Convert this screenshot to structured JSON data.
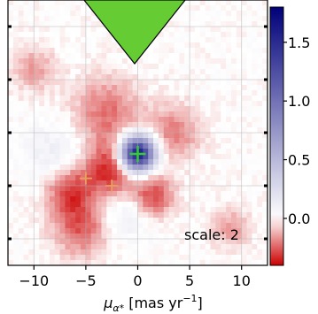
{
  "chart_data": {
    "type": "heatmap",
    "title": "",
    "xlabel_main": "μ",
    "xlabel_sub": "α*",
    "xlabel_units": " [mas yr",
    "xlabel_exp": "−1",
    "xlabel_close": "]",
    "xlim": [
      -12.5,
      12.5
    ],
    "ylim": [
      -12.5,
      12.5
    ],
    "x_ticks": [
      -10,
      -5,
      0,
      5,
      10
    ],
    "x_tick_labels": [
      "−10",
      "−5",
      "0",
      "5",
      "10"
    ],
    "y_ticks": [
      -10,
      -5,
      0,
      5,
      10
    ],
    "colorbar": {
      "vmin": -0.4,
      "vmax": 1.8,
      "ticks": [
        0.0,
        0.5,
        1.0,
        1.5
      ],
      "tick_labels": [
        "0.0",
        "0.5",
        "1.0",
        "1.5"
      ],
      "colormap": "seismic-reversed",
      "color_low": "#cc0000",
      "color_mid": "#ffffff",
      "color_high": "#00007a"
    },
    "features": [
      {
        "kind": "blob",
        "x": 0.0,
        "y": -2.0,
        "amplitude": 1.7,
        "sigma": 1.1
      },
      {
        "kind": "blob",
        "x": -2.5,
        "y": -3.5,
        "amplitude": -0.35,
        "sigma": 1.8
      },
      {
        "kind": "blob",
        "x": -6.5,
        "y": -5.5,
        "amplitude": -0.3,
        "sigma": 1.6
      },
      {
        "kind": "blob",
        "x": 1.5,
        "y": -6.0,
        "amplitude": -0.3,
        "sigma": 1.4
      },
      {
        "kind": "blob",
        "x": -5.5,
        "y": -9.0,
        "amplitude": -0.25,
        "sigma": 1.8
      },
      {
        "kind": "blob",
        "x": -3.0,
        "y": 2.0,
        "amplitude": -0.22,
        "sigma": 2.2
      },
      {
        "kind": "blob",
        "x": 3.5,
        "y": 0.0,
        "amplitude": -0.2,
        "sigma": 1.8
      },
      {
        "kind": "blob",
        "x": -8.0,
        "y": -2.0,
        "amplitude": 0.12,
        "sigma": 2.0
      },
      {
        "kind": "blob",
        "x": -1.0,
        "y": -7.5,
        "amplitude": 0.12,
        "sigma": 1.8
      },
      {
        "kind": "blob",
        "x": -10.0,
        "y": 6.0,
        "amplitude": -0.15,
        "sigma": 1.5
      },
      {
        "kind": "blob",
        "x": 9.0,
        "y": -9.0,
        "amplitude": -0.15,
        "sigma": 1.3
      }
    ],
    "markers": [
      {
        "x": 0.0,
        "y": -2.0,
        "color": "#33cc33",
        "style": "plus"
      },
      {
        "x": -5.0,
        "y": -4.3,
        "color": "#e8a060",
        "style": "plus"
      },
      {
        "x": -2.5,
        "y": -5.0,
        "color": "#e8a060",
        "style": "plus"
      }
    ],
    "arrow": {
      "tip_x": -0.3,
      "tip_y": 6.5,
      "direction": "down",
      "color": "#66cc33"
    },
    "annotation": "scale: 2"
  }
}
